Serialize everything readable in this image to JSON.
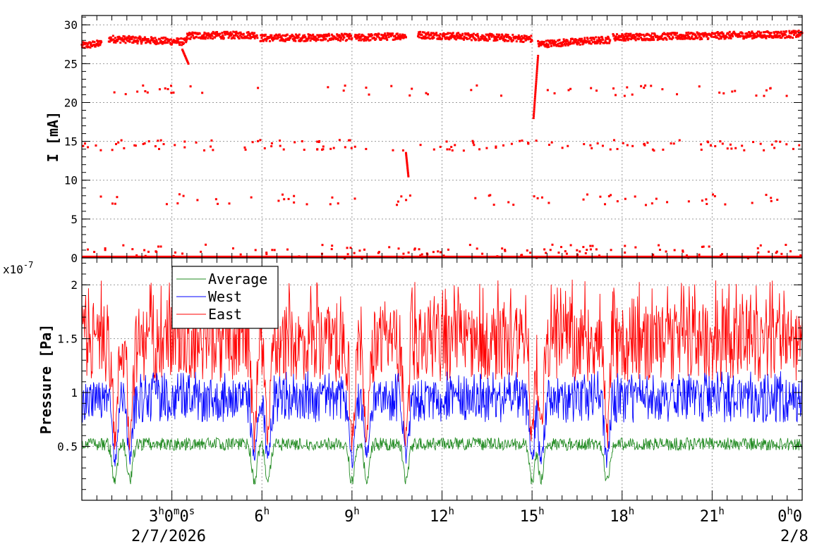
{
  "chart_data": [
    {
      "type": "scatter",
      "panel": "top",
      "ylabel": "I [mA]",
      "ylim": [
        0,
        31.2
      ],
      "yticks": [
        0,
        5,
        10,
        15,
        20,
        25,
        30
      ],
      "ytick_labels": [
        "0",
        "5",
        "10",
        "15",
        "20",
        "25",
        "30"
      ],
      "grid": true,
      "series": [
        {
          "color": "#ff0000",
          "description": "beam current, ~27-29 mA during stored beam, dips near refills",
          "segments": [
            {
              "t": [
                0.0,
                0.65
              ],
              "level": [
                27.3,
                27.6
              ]
            },
            {
              "t": [
                0.9,
                3.5
              ],
              "level": [
                28.2,
                27.8
              ]
            },
            {
              "t": [
                3.5,
                5.85
              ],
              "level": [
                28.6,
                28.7
              ]
            },
            {
              "t": [
                5.95,
                9.0
              ],
              "level": [
                28.3,
                28.4
              ]
            },
            {
              "t": [
                9.1,
                10.8
              ],
              "level": [
                28.3,
                28.6
              ]
            },
            {
              "t": [
                11.2,
                15.0
              ],
              "level": [
                28.7,
                28.2
              ]
            },
            {
              "t": [
                15.2,
                17.6
              ],
              "level": [
                27.5,
                28.1
              ]
            },
            {
              "t": [
                17.7,
                24.0
              ],
              "level": [
                28.4,
                28.8
              ]
            }
          ]
        }
      ]
    },
    {
      "type": "line",
      "panel": "bottom",
      "ylabel": "Pressure [Pa]",
      "scale_label": "x10",
      "scale_exponent": "-7",
      "ylim": [
        0.0,
        2.25
      ],
      "yticks": [
        0.5,
        1.0,
        1.5,
        2.0
      ],
      "ytick_labels": [
        "0.5",
        "1",
        "1.5",
        "2"
      ],
      "grid": true,
      "legend": {
        "placement": "top-left",
        "entries": [
          "Average",
          "West",
          "East"
        ]
      },
      "series": [
        {
          "name": "East",
          "color": "#ff0000",
          "base": 1.45,
          "spread": 0.35,
          "spikes": 2.05
        },
        {
          "name": "West",
          "color": "#0000ff",
          "base": 0.92,
          "spread": 0.2,
          "spikes": 1.2
        },
        {
          "name": "Average",
          "color": "#228b22",
          "base": 0.56,
          "spread": 0.06,
          "spikes": 0.66
        }
      ],
      "dips": [
        1.1,
        1.6,
        5.75,
        6.2,
        9.0,
        9.5,
        10.8,
        15.0,
        15.3,
        17.5
      ]
    }
  ],
  "time_axis": {
    "range_hours": [
      0,
      24
    ],
    "major_ticks": [
      {
        "hour": 3,
        "label": "3",
        "sup": "h",
        "tail": "0",
        "tail_sup": "m",
        "tail2": "0",
        "tail2_sup": "s"
      },
      {
        "hour": 6,
        "label": "6",
        "sup": "h"
      },
      {
        "hour": 9,
        "label": "9",
        "sup": "h"
      },
      {
        "hour": 12,
        "label": "12",
        "sup": "h"
      },
      {
        "hour": 15,
        "label": "15",
        "sup": "h"
      },
      {
        "hour": 18,
        "label": "18",
        "sup": "h"
      },
      {
        "hour": 21,
        "label": "21",
        "sup": "h"
      },
      {
        "hour": 24,
        "label": "0",
        "sup": "h",
        "tail": "0"
      }
    ],
    "date_start": "2/7/2026",
    "date_end": "2/8"
  },
  "colors": {
    "east": "#ff0000",
    "west": "#0000ff",
    "average": "#228b22",
    "grid": "#9a9a9a"
  }
}
